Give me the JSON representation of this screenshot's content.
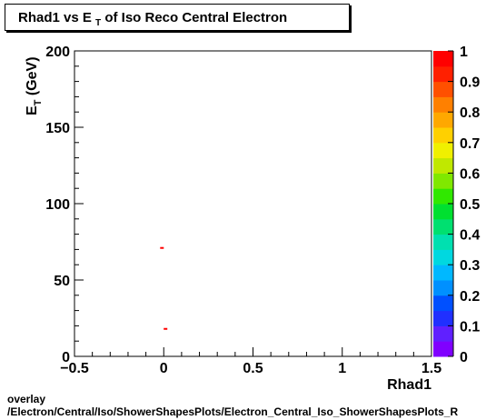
{
  "title": {
    "main": "Rhad1 vs E",
    "sub": "T",
    "rest": " of Iso Reco Central  Electron"
  },
  "footer": {
    "line1": "overlay",
    "line2": "/Electron/Central/Iso/ShowerShapesPlots/Electron_Central_Iso_ShowerShapesPlots_R"
  },
  "chart_data": {
    "type": "scatter",
    "title": "Rhad1 vs E_T of Iso Reco Central  Electron",
    "xlabel": "Rhad1",
    "ylabel": "E_T (GeV)",
    "ylabel_main": "E",
    "ylabel_sub": "T",
    "ylabel_rest": " (GeV)",
    "xlim": [
      -0.5,
      1.5
    ],
    "ylim": [
      0,
      200
    ],
    "x_ticks": [
      -0.5,
      0,
      0.5,
      1,
      1.5
    ],
    "x_tick_labels": [
      "−0.5",
      "0",
      "0.5",
      "1",
      "1.5"
    ],
    "y_ticks": [
      0,
      50,
      100,
      150,
      200
    ],
    "y_tick_labels": [
      "0",
      "50",
      "100",
      "150",
      "200"
    ],
    "grid": false,
    "points": [
      {
        "x": -0.01,
        "y": 71
      },
      {
        "x": 0.01,
        "y": 18
      }
    ],
    "marker_color": "#ff0000",
    "colorbar": {
      "range": [
        0,
        1
      ],
      "tick_labels": [
        "0",
        "0.1",
        "0.2",
        "0.3",
        "0.4",
        "0.5",
        "0.6",
        "0.7",
        "0.8",
        "0.9",
        "1"
      ],
      "colors": [
        "#8000ff",
        "#6020ff",
        "#2030ff",
        "#0050ff",
        "#0090ff",
        "#00b8ff",
        "#00d8e0",
        "#00e0b0",
        "#00e070",
        "#00e030",
        "#30e800",
        "#80e800",
        "#c0e800",
        "#f0f000",
        "#ffd000",
        "#ffa800",
        "#ff8000",
        "#ff5000",
        "#ff2000",
        "#ff0000"
      ]
    }
  }
}
